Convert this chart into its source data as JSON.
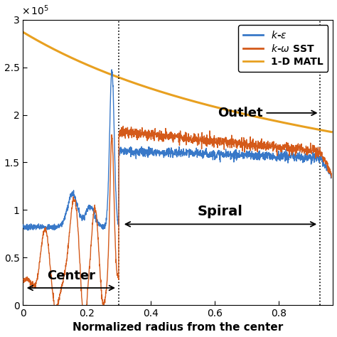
{
  "xlabel": "Normalized radius from the center",
  "xlim": [
    0,
    0.97
  ],
  "ylim": [
    0,
    300000
  ],
  "yticks": [
    0,
    50000,
    100000,
    150000,
    200000,
    250000,
    300000
  ],
  "ytick_labels": [
    "0",
    "0.5",
    "1",
    "1.5",
    "2",
    "2.5",
    "3"
  ],
  "xticks": [
    0,
    0.2,
    0.4,
    0.6,
    0.8
  ],
  "legend_colors": [
    "#3878c8",
    "#d45a1a",
    "#e8a020"
  ],
  "dashed_line1_x": 0.3,
  "dashed_line2_x": 0.93,
  "background_color": "#ffffff"
}
